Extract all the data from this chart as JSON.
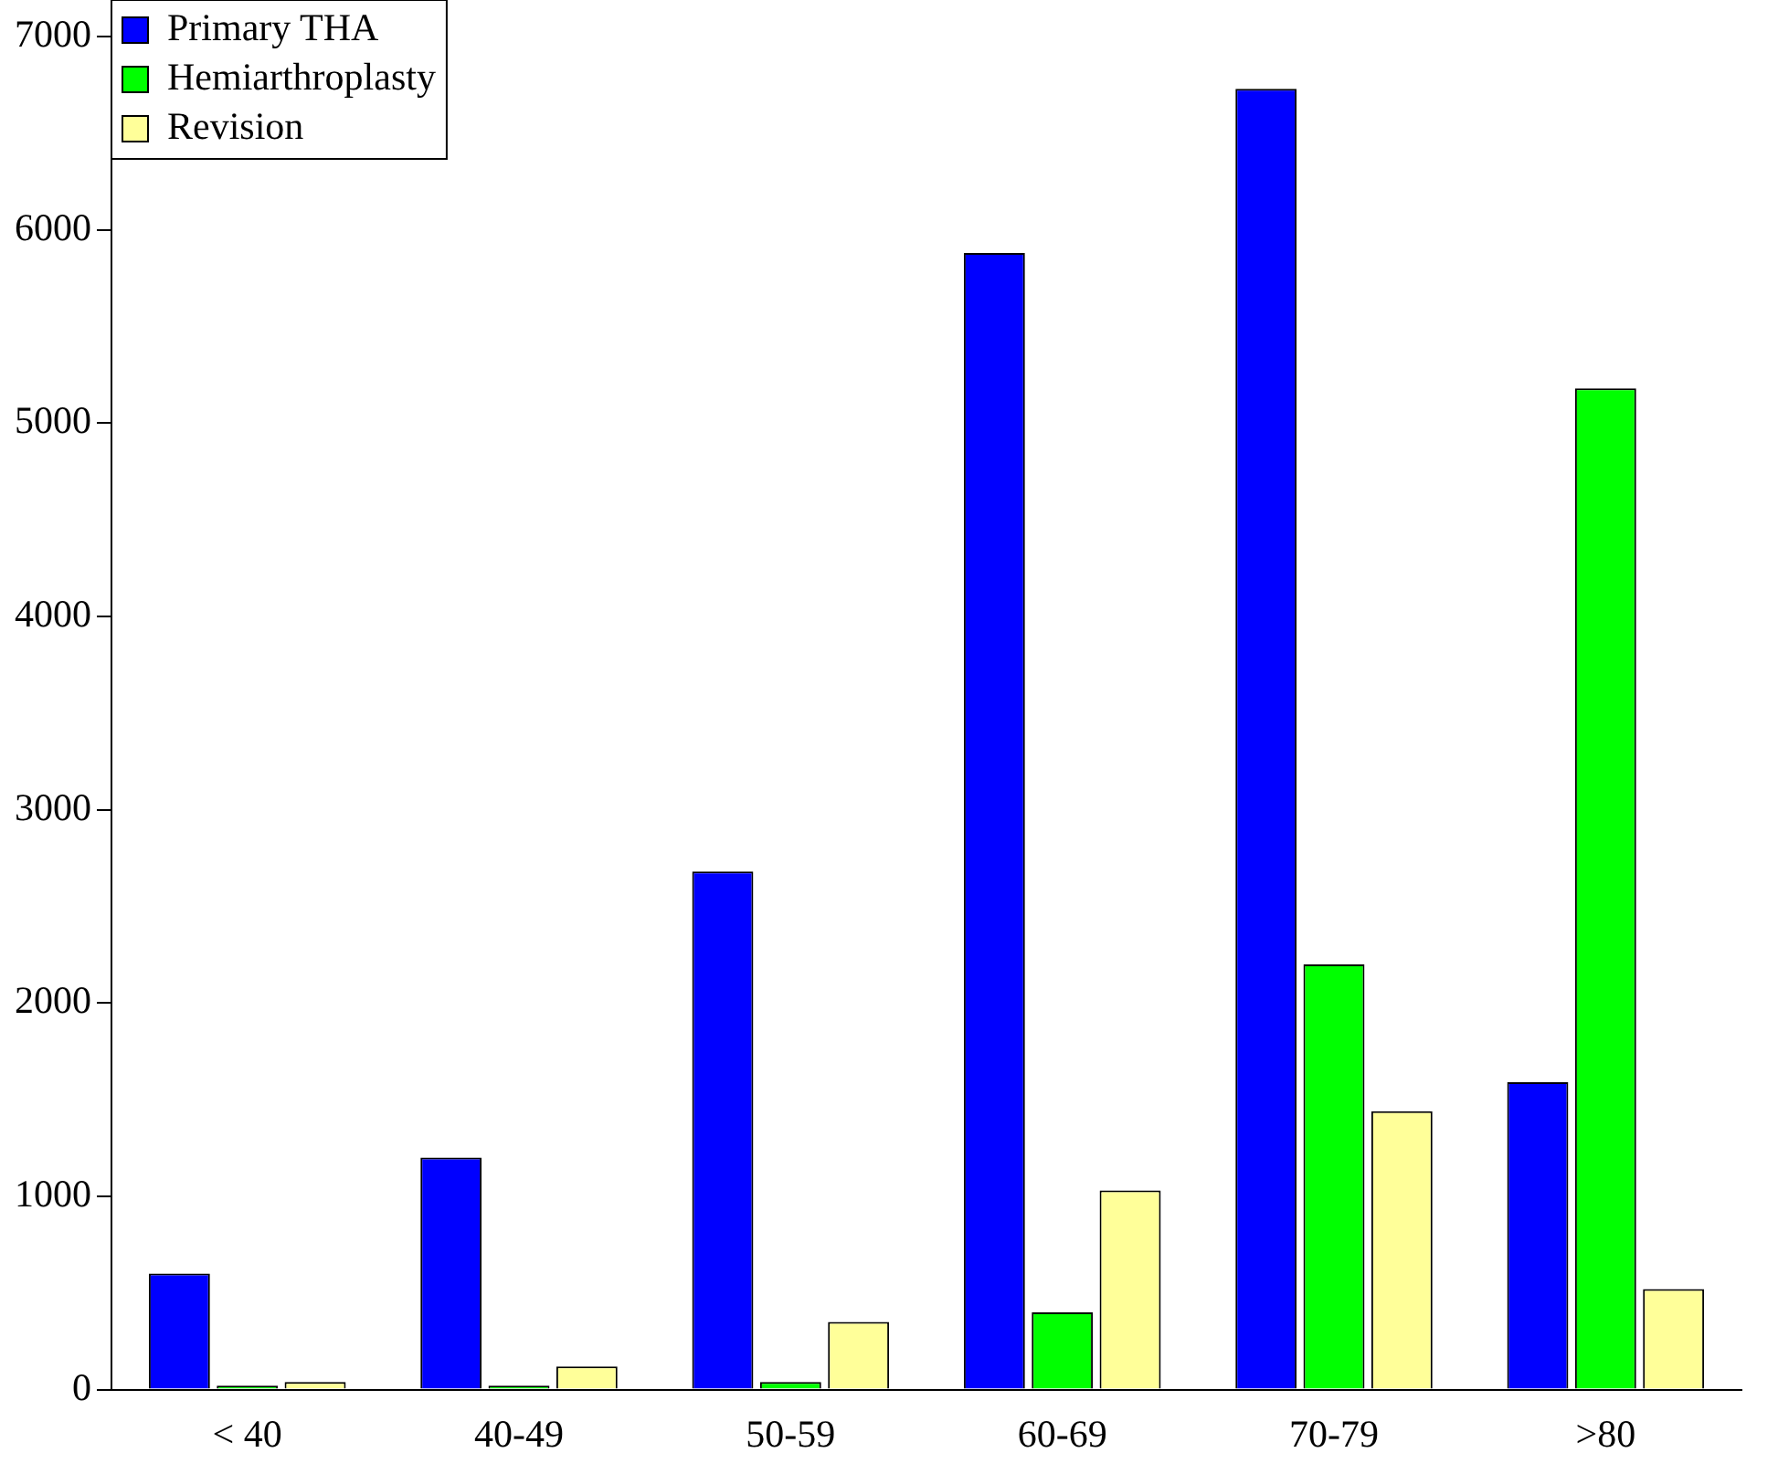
{
  "chart_data": {
    "type": "bar",
    "categories": [
      "< 40",
      "40-49",
      "50-59",
      "60-69",
      "70-79",
      ">80"
    ],
    "series": [
      {
        "name": "Primary THA",
        "color": "#0000ff",
        "values": [
          600,
          1200,
          2680,
          5880,
          6730,
          1590
        ]
      },
      {
        "name": "Hemiarthroplasty",
        "color": "#00ff00",
        "values": [
          20,
          20,
          40,
          400,
          2200,
          5180
        ]
      },
      {
        "name": "Revision",
        "color": "#ffff99",
        "values": [
          40,
          120,
          350,
          1030,
          1440,
          520
        ]
      }
    ],
    "ylim": [
      0,
      7000
    ],
    "yticks": [
      0,
      1000,
      2000,
      3000,
      4000,
      5000,
      6000,
      7000
    ],
    "grid": false,
    "legend": "top left"
  }
}
